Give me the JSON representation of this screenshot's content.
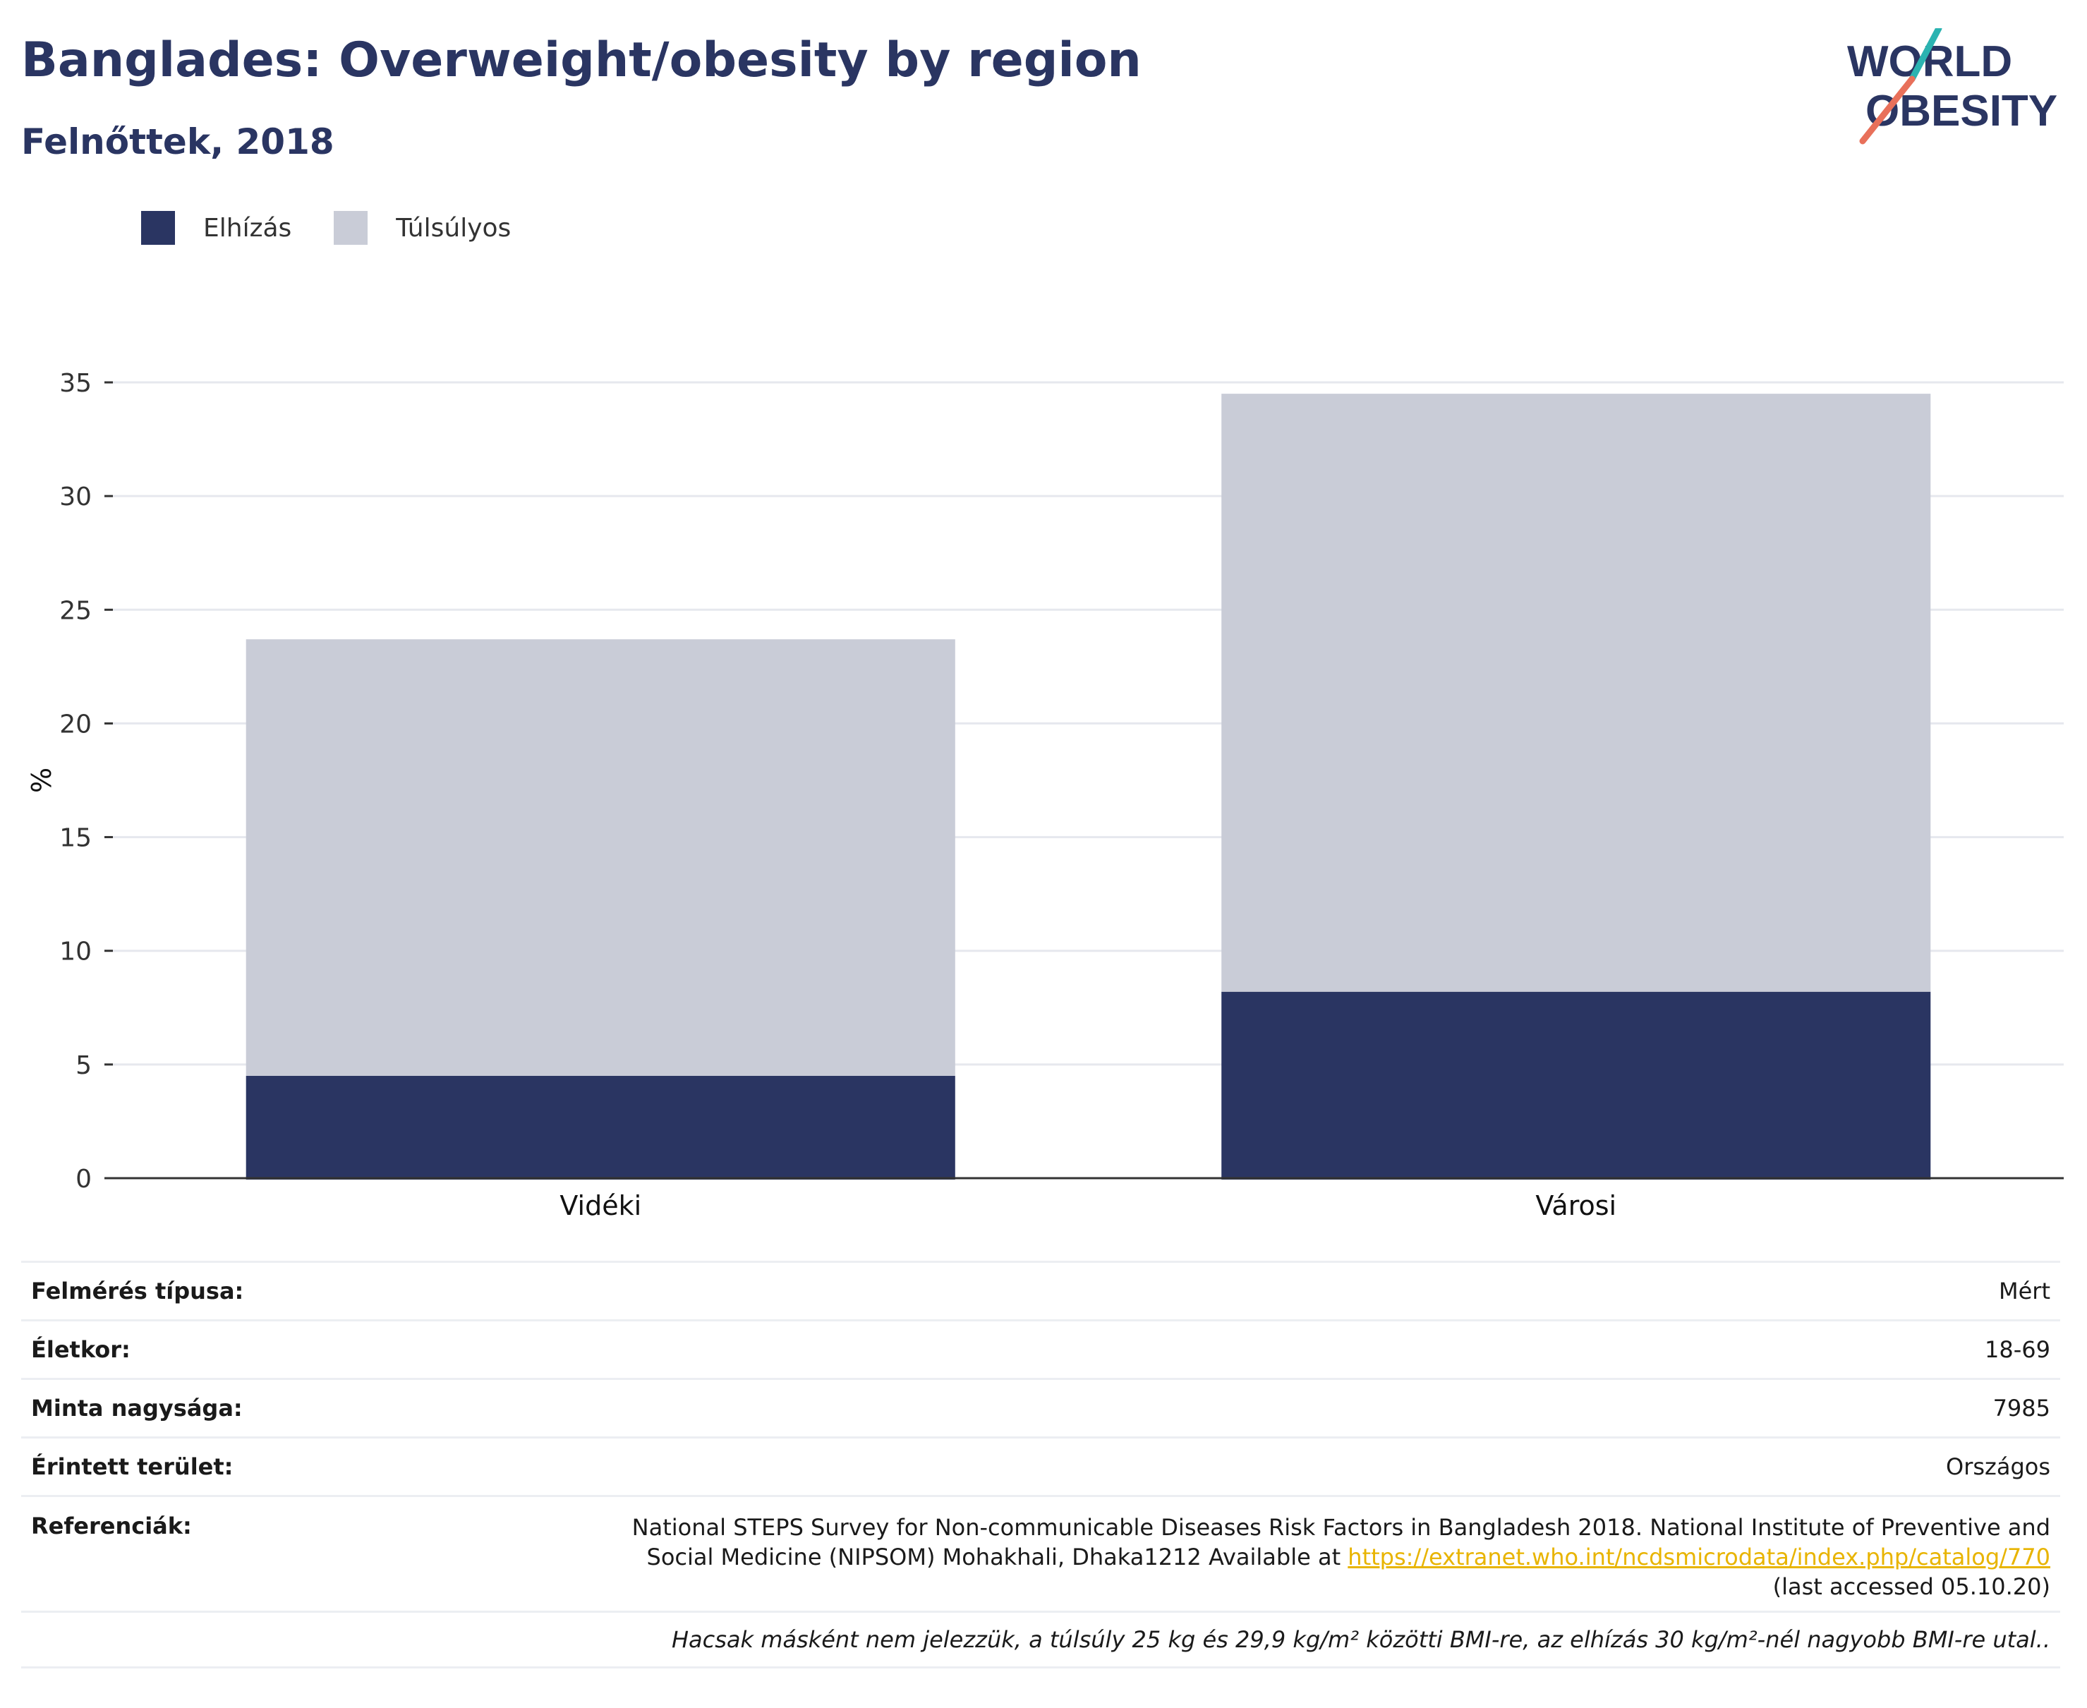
{
  "title": "Banglades: Overweight/obesity by region",
  "subtitle": "Felnőttek, 2018",
  "logo": {
    "line1": "WORLD",
    "line2": "OBESITY"
  },
  "colors": {
    "obesity": "#2a3562",
    "overweight": "#c9ccd7",
    "text": "#2a3562",
    "link": "#e8b400",
    "logo_teal": "#2bb3b1",
    "logo_coral": "#e8705a"
  },
  "legend": [
    {
      "label": "Elhízás",
      "color": "#2a3562"
    },
    {
      "label": "Túlsúlyos",
      "color": "#c9ccd7"
    }
  ],
  "chart_data": {
    "type": "bar",
    "stacked": true,
    "categories": [
      "Vidéki",
      "Városi"
    ],
    "series": [
      {
        "name": "Elhízás",
        "values": [
          4.5,
          8.2
        ]
      },
      {
        "name": "Túlsúlyos",
        "values": [
          19.2,
          26.3
        ]
      }
    ],
    "ylabel": "%",
    "ylim": [
      0,
      35
    ],
    "yticks": [
      0,
      5,
      10,
      15,
      20,
      25,
      30,
      35
    ],
    "grid": true,
    "legend_position": "top-left"
  },
  "info": {
    "survey_type": {
      "label": "Felmérés típusa:",
      "value": "Mért"
    },
    "age": {
      "label": "Életkor:",
      "value": "18-69"
    },
    "sample": {
      "label": "Minta nagysága:",
      "value": "7985"
    },
    "area": {
      "label": "Érintett terület:",
      "value": "Országos"
    },
    "references": {
      "label": "Referenciák:",
      "text_before": "National STEPS Survey for Non-communicable Diseases Risk Factors in Bangladesh 2018. National Institute of Preventive and Social Medicine (NIPSOM) Mohakhali, Dhaka1212 Available at ",
      "link": "https://extranet.who.int/ncdsmicrodata/index.php/catalog/770",
      "text_after": " (last accessed 05.10.20)"
    },
    "footnote": "Hacsak másként nem jelezzük, a túlsúly 25 kg és 29,9 kg/m² közötti BMI-re, az elhízás 30 kg/m²-nél nagyobb BMI-re utal.."
  }
}
